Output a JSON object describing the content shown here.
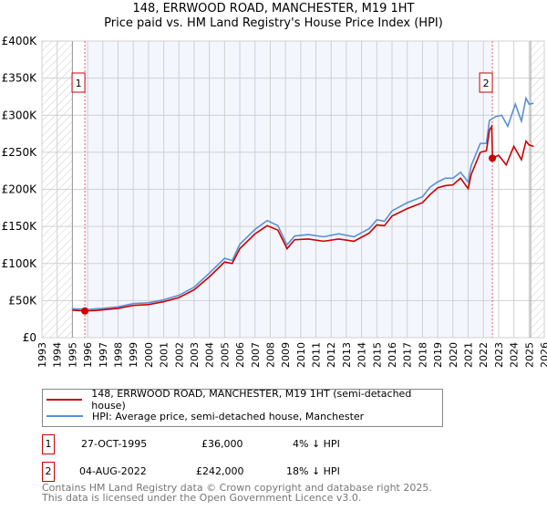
{
  "chart_data": {
    "type": "line",
    "title": "148, ERRWOOD ROAD, MANCHESTER, M19 1HT",
    "subtitle": "Price paid vs. HM Land Registry's House Price Index (HPI)",
    "xlim": [
      1993,
      2026
    ],
    "ylim": [
      0,
      400000
    ],
    "x_ticks": [
      "1993",
      "1994",
      "1995",
      "1996",
      "1997",
      "1998",
      "1999",
      "2000",
      "2001",
      "2002",
      "2003",
      "2004",
      "2005",
      "2006",
      "2007",
      "2008",
      "2009",
      "2010",
      "2011",
      "2012",
      "2013",
      "2014",
      "2015",
      "2016",
      "2017",
      "2018",
      "2019",
      "2020",
      "2021",
      "2022",
      "2023",
      "2024",
      "2025",
      "2026"
    ],
    "y_ticks": [
      {
        "v": 0,
        "l": "£0"
      },
      {
        "v": 50000,
        "l": "£50K"
      },
      {
        "v": 100000,
        "l": "£100K"
      },
      {
        "v": 150000,
        "l": "£150K"
      },
      {
        "v": 200000,
        "l": "£200K"
      },
      {
        "v": 250000,
        "l": "£250K"
      },
      {
        "v": 300000,
        "l": "£300K"
      },
      {
        "v": 350000,
        "l": "£350K"
      },
      {
        "v": 400000,
        "l": "£400K"
      }
    ],
    "series": [
      {
        "name": "148, ERRWOOD ROAD, MANCHESTER, M19 1HT (semi-detached house)",
        "color": "#cc0000",
        "x": [
          1995,
          1995.8,
          1996.5,
          1997,
          1998,
          1999,
          2000,
          2001,
          2002,
          2003,
          2004,
          2005,
          2005.5,
          2006,
          2007,
          2007.8,
          2008.5,
          2009.1,
          2009.6,
          2010.5,
          2011.5,
          2012.5,
          2013.5,
          2014.5,
          2015,
          2015.5,
          2016,
          2017,
          2018,
          2018.5,
          2019,
          2019.5,
          2020,
          2020.5,
          2021,
          2021.2,
          2021.8,
          2022.2,
          2022.4,
          2022.55,
          2022.6,
          2023,
          2023.5,
          2024,
          2024.5,
          2024.8,
          2025,
          2025.3
        ],
        "y": [
          37000,
          36000,
          36500,
          37500,
          39500,
          43500,
          44500,
          48500,
          54000,
          64500,
          82000,
          102000,
          100000,
          120000,
          140000,
          151000,
          145000,
          120000,
          132000,
          133000,
          130000,
          133000,
          130000,
          141000,
          152000,
          151000,
          164000,
          174000,
          182000,
          193000,
          202000,
          205000,
          206000,
          215000,
          201000,
          220000,
          250000,
          252000,
          280000,
          285000,
          242000,
          246000,
          233000,
          258000,
          240000,
          265000,
          260000,
          258000
        ]
      },
      {
        "name": "HPI: Average price, semi-detached house, Manchester",
        "color": "#5b8fd4",
        "x": [
          1995,
          1996,
          1997,
          1998,
          1999,
          2000,
          2001,
          2002,
          2003,
          2004,
          2005,
          2005.5,
          2006,
          2007,
          2007.8,
          2008.5,
          2009.1,
          2009.6,
          2010.5,
          2011.5,
          2012.5,
          2013.5,
          2014.5,
          2015,
          2015.5,
          2016,
          2017,
          2018,
          2018.5,
          2019,
          2019.5,
          2020,
          2020.5,
          2021,
          2021.2,
          2021.8,
          2022.2,
          2022.4,
          2022.8,
          2023.2,
          2023.6,
          2024.1,
          2024.5,
          2024.8,
          2025,
          2025.3
        ],
        "y": [
          39000,
          38000,
          39500,
          41500,
          46000,
          47000,
          51000,
          57000,
          68000,
          87000,
          107000,
          104000,
          126000,
          146000,
          158000,
          151000,
          125000,
          137000,
          139000,
          136000,
          140000,
          136000,
          147000,
          159000,
          157000,
          171000,
          182000,
          190000,
          203000,
          210000,
          215000,
          215000,
          223000,
          210000,
          232000,
          262000,
          262000,
          293000,
          298000,
          300000,
          285000,
          315000,
          292000,
          323000,
          315000,
          316000
        ]
      }
    ],
    "sales": [
      {
        "n": "1",
        "x": 1995.82,
        "y": 36000
      },
      {
        "n": "2",
        "x": 2022.59,
        "y": 242000
      }
    ]
  },
  "legend": {
    "red": "148, ERRWOOD ROAD, MANCHESTER, M19 1HT (semi-detached house)",
    "blue": "HPI: Average price, semi-detached house, Manchester"
  },
  "transactions": [
    {
      "n": "1",
      "date": "27-OCT-1995",
      "price": "£36,000",
      "hpi": "4% ↓ HPI"
    },
    {
      "n": "2",
      "date": "04-AUG-2022",
      "price": "£242,000",
      "hpi": "18% ↓ HPI"
    }
  ],
  "footer": {
    "line1": "Contains HM Land Registry data © Crown copyright and database right 2025.",
    "line2": "This data is licensed under the Open Government Licence v3.0."
  }
}
